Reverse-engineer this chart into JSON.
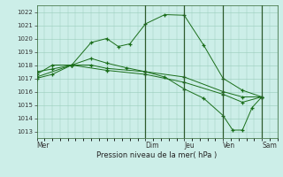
{
  "background_color": "#cceee8",
  "grid_color": "#99ccbb",
  "line_color": "#1a6e1a",
  "marker_color": "#1a6e1a",
  "ylim": [
    1012.5,
    1022.5
  ],
  "yticks": [
    1013,
    1014,
    1015,
    1016,
    1017,
    1018,
    1019,
    1020,
    1021,
    1022
  ],
  "xlabel": "Pression niveau de la mer( hPa )",
  "day_labels": [
    "Mer",
    "Dim",
    "Jeu",
    "Ven",
    "Sam"
  ],
  "day_positions": [
    0.0,
    2.8,
    3.8,
    4.8,
    5.8
  ],
  "vline_positions": [
    2.8,
    3.8,
    4.8,
    5.8
  ],
  "xlim": [
    0,
    6.2
  ],
  "series1_x": [
    0.0,
    0.4,
    0.9,
    1.4,
    1.8,
    2.1,
    2.4,
    2.8,
    3.3,
    3.8,
    4.3,
    4.8,
    5.3,
    5.8
  ],
  "series1_y": [
    1017.5,
    1017.7,
    1018.0,
    1019.7,
    1020.0,
    1019.4,
    1019.6,
    1021.1,
    1021.8,
    1021.75,
    1019.5,
    1017.0,
    1016.1,
    1015.6
  ],
  "series2_x": [
    0.0,
    0.4,
    0.9,
    1.4,
    1.8,
    2.8,
    3.8,
    4.8,
    5.3,
    5.8
  ],
  "series2_y": [
    1017.3,
    1018.0,
    1018.0,
    1018.0,
    1017.75,
    1017.5,
    1017.1,
    1016.0,
    1015.6,
    1015.6
  ],
  "series3_x": [
    0.0,
    0.9,
    1.8,
    2.8,
    3.8,
    4.8,
    5.3,
    5.8
  ],
  "series3_y": [
    1017.1,
    1018.0,
    1017.6,
    1017.3,
    1016.7,
    1015.8,
    1015.2,
    1015.6
  ],
  "series4_x": [
    0.0,
    0.4,
    0.9,
    1.4,
    1.8,
    2.3,
    2.8,
    3.3,
    3.8,
    4.3,
    4.8,
    5.05,
    5.3,
    5.55,
    5.8
  ],
  "series4_y": [
    1017.0,
    1017.3,
    1018.0,
    1018.5,
    1018.15,
    1017.8,
    1017.5,
    1017.1,
    1016.2,
    1015.5,
    1014.2,
    1013.1,
    1013.1,
    1014.8,
    1015.6
  ]
}
